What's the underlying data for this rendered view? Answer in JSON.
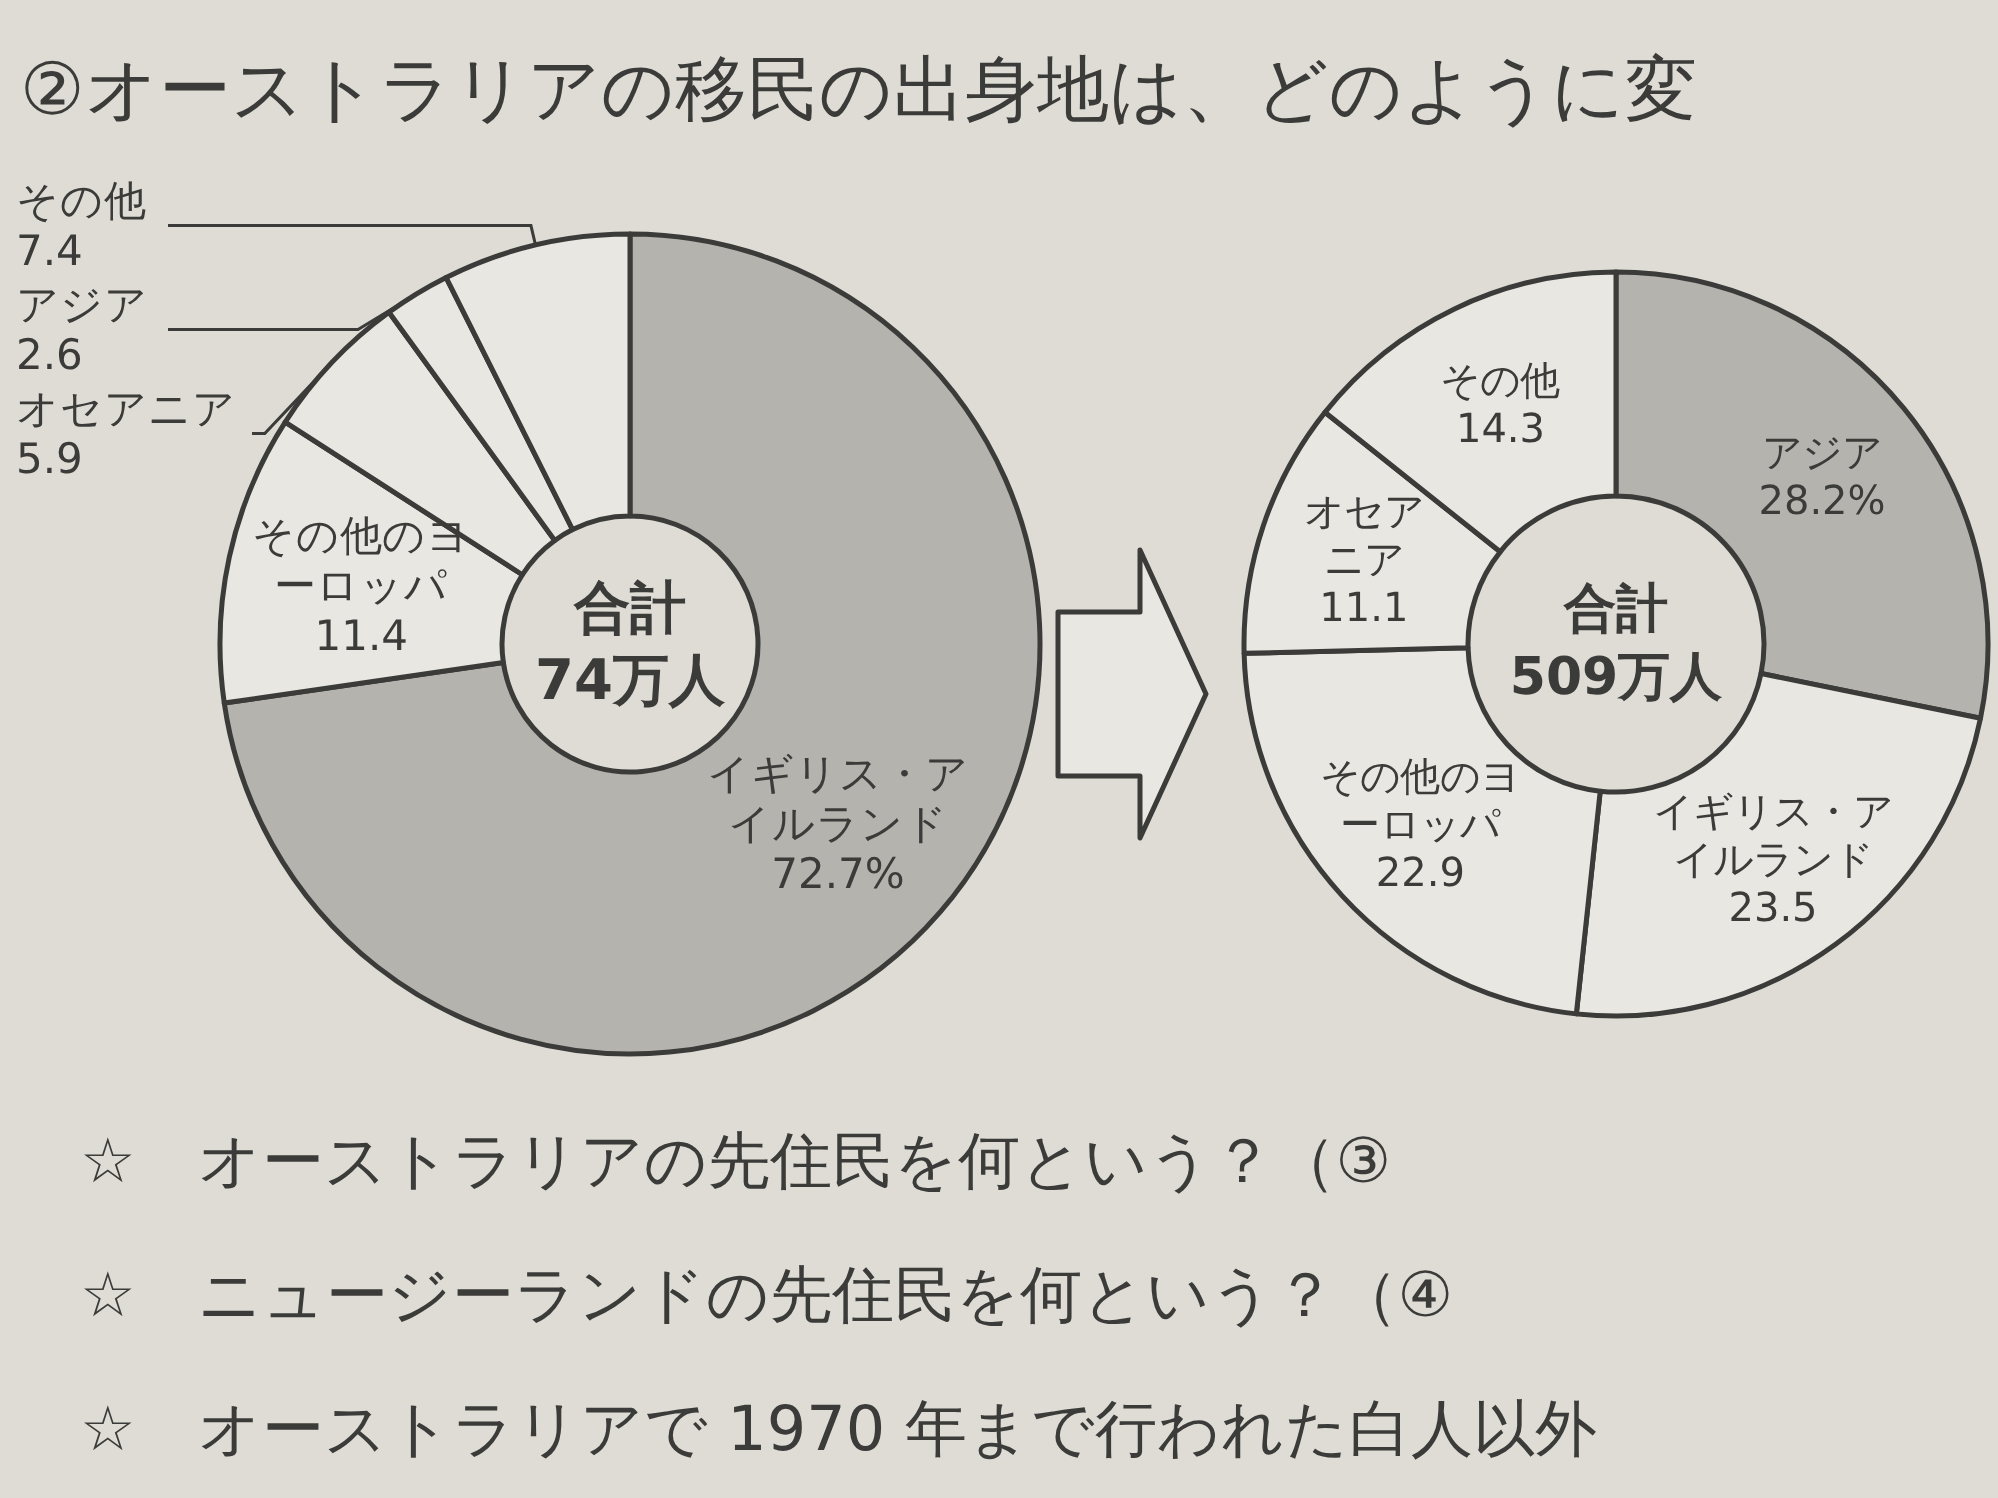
{
  "chart_data": [
    {
      "type": "donut",
      "title": "②オーストラリアの移民の出身地は、どのように変",
      "categories": [
        "イギリス・アイルランド",
        "その他のヨーロッパ",
        "オセアニア",
        "アジア",
        "その他"
      ],
      "values": [
        72.7,
        11.4,
        5.9,
        2.6,
        7.4
      ],
      "value_labels": [
        "72.7%",
        "11.4",
        "5.9",
        "2.6",
        "7.4"
      ],
      "colors": [
        "#b4b3ae",
        "#e8e7e1",
        "#e8e7e1",
        "#e8e7e1",
        "#e8e7e1"
      ],
      "annotations": [
        "合計",
        "74万人"
      ]
    },
    {
      "type": "donut",
      "categories": [
        "アジア",
        "イギリス・アイルランド",
        "その他のヨーロッパ",
        "オセアニア",
        "その他"
      ],
      "values": [
        28.2,
        23.5,
        22.9,
        11.1,
        14.3
      ],
      "value_labels": [
        "28.2%",
        "23.5",
        "22.9",
        "11.1",
        "14.3"
      ],
      "colors": [
        "#b4b3ae",
        "#e8e7e1",
        "#e8e7e1",
        "#e8e7e1",
        "#e8e7e1"
      ],
      "annotations": [
        "合計",
        "509万人"
      ]
    },
    {
      "type": "other",
      "annotations": [
        "☆　オーストラリアの先住民を何という？（③",
        "☆　ニュージーランドの先住民を何という？（④",
        "☆　オーストラリアで 1970 年まで行われた白人以外"
      ]
    }
  ]
}
